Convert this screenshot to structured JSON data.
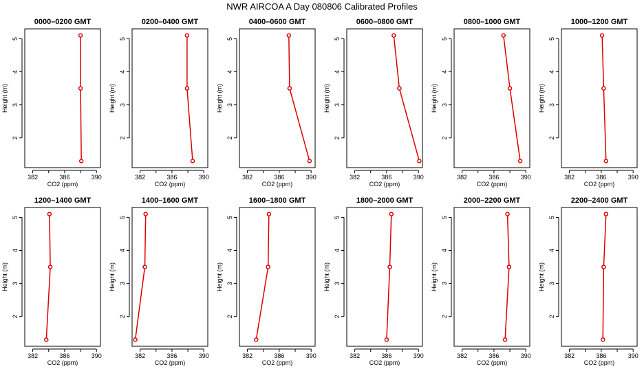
{
  "figure_title": "NWR AIRCOA A  Day 080806  Calibrated Profiles",
  "chart_data": [
    {
      "type": "line",
      "title": "0000–0200 GMT",
      "xlabel": "CO2 (ppm)",
      "ylabel": "Height (m)",
      "xlim": [
        381,
        390.5
      ],
      "ylim": [
        1.1,
        5.3
      ],
      "xticks": [
        382,
        386,
        390
      ],
      "yticks": [
        2,
        3,
        4,
        5
      ],
      "x": [
        388.1,
        388.0,
        388.0
      ],
      "y": [
        1.3,
        3.5,
        5.1
      ]
    },
    {
      "type": "line",
      "title": "0200–0400 GMT",
      "xlabel": "CO2 (ppm)",
      "ylabel": "Height (m)",
      "xlim": [
        381,
        390.5
      ],
      "ylim": [
        1.1,
        5.3
      ],
      "xticks": [
        382,
        386,
        390
      ],
      "yticks": [
        2,
        3,
        4,
        5
      ],
      "x": [
        388.6,
        387.9,
        387.9
      ],
      "y": [
        1.3,
        3.5,
        5.1
      ]
    },
    {
      "type": "line",
      "title": "0400–0600 GMT",
      "xlabel": "CO2 (ppm)",
      "ylabel": "Height (m)",
      "xlim": [
        381,
        390.5
      ],
      "ylim": [
        1.1,
        5.3
      ],
      "xticks": [
        382,
        386,
        390
      ],
      "yticks": [
        2,
        3,
        4,
        5
      ],
      "x": [
        389.8,
        387.3,
        387.2
      ],
      "y": [
        1.3,
        3.5,
        5.1
      ]
    },
    {
      "type": "line",
      "title": "0600–0800 GMT",
      "xlabel": "CO2 (ppm)",
      "ylabel": "Height (m)",
      "xlim": [
        381,
        390.5
      ],
      "ylim": [
        1.1,
        5.3
      ],
      "xticks": [
        382,
        386,
        390
      ],
      "yticks": [
        2,
        3,
        4,
        5
      ],
      "x": [
        390.1,
        387.6,
        386.9
      ],
      "y": [
        1.3,
        3.5,
        5.1
      ]
    },
    {
      "type": "line",
      "title": "0800–1000 GMT",
      "xlabel": "CO2 (ppm)",
      "ylabel": "Height (m)",
      "xlim": [
        381,
        390.5
      ],
      "ylim": [
        1.1,
        5.3
      ],
      "xticks": [
        382,
        386,
        390
      ],
      "yticks": [
        2,
        3,
        4,
        5
      ],
      "x": [
        389.3,
        388.0,
        387.2
      ],
      "y": [
        1.3,
        3.5,
        5.1
      ]
    },
    {
      "type": "line",
      "title": "1000–1200 GMT",
      "xlabel": "CO2 (ppm)",
      "ylabel": "Height (m)",
      "xlim": [
        381,
        390.5
      ],
      "ylim": [
        1.1,
        5.3
      ],
      "xticks": [
        382,
        386,
        390
      ],
      "yticks": [
        2,
        3,
        4,
        5
      ],
      "x": [
        386.6,
        386.3,
        386.1
      ],
      "y": [
        1.3,
        3.5,
        5.1
      ]
    },
    {
      "type": "line",
      "title": "1200–1400 GMT",
      "xlabel": "CO2 (ppm)",
      "ylabel": "Height (m)",
      "xlim": [
        381,
        390.5
      ],
      "ylim": [
        1.1,
        5.3
      ],
      "xticks": [
        382,
        386,
        390
      ],
      "yticks": [
        2,
        3,
        4,
        5
      ],
      "x": [
        383.7,
        384.2,
        384.1
      ],
      "y": [
        1.3,
        3.5,
        5.1
      ]
    },
    {
      "type": "line",
      "title": "1400–1600 GMT",
      "xlabel": "CO2 (ppm)",
      "ylabel": "Height (m)",
      "xlim": [
        381,
        390.5
      ],
      "ylim": [
        1.1,
        5.3
      ],
      "xticks": [
        382,
        386,
        390
      ],
      "yticks": [
        2,
        3,
        4,
        5
      ],
      "x": [
        381.4,
        382.6,
        382.7
      ],
      "y": [
        1.3,
        3.5,
        5.1
      ]
    },
    {
      "type": "line",
      "title": "1600–1800 GMT",
      "xlabel": "CO2 (ppm)",
      "ylabel": "Height (m)",
      "xlim": [
        381,
        390.5
      ],
      "ylim": [
        1.1,
        5.3
      ],
      "xticks": [
        382,
        386,
        390
      ],
      "yticks": [
        2,
        3,
        4,
        5
      ],
      "x": [
        383.1,
        384.6,
        384.7
      ],
      "y": [
        1.3,
        3.5,
        5.1
      ]
    },
    {
      "type": "line",
      "title": "1800–2000 GMT",
      "xlabel": "CO2 (ppm)",
      "ylabel": "Height (m)",
      "xlim": [
        381,
        390.5
      ],
      "ylim": [
        1.1,
        5.3
      ],
      "xticks": [
        382,
        386,
        390
      ],
      "yticks": [
        2,
        3,
        4,
        5
      ],
      "x": [
        386.0,
        386.4,
        386.6
      ],
      "y": [
        1.3,
        3.5,
        5.1
      ]
    },
    {
      "type": "line",
      "title": "2000–2200 GMT",
      "xlabel": "CO2 (ppm)",
      "ylabel": "Height (m)",
      "xlim": [
        381,
        390.5
      ],
      "ylim": [
        1.1,
        5.3
      ],
      "xticks": [
        382,
        386,
        390
      ],
      "yticks": [
        2,
        3,
        4,
        5
      ],
      "x": [
        387.4,
        387.9,
        387.7
      ],
      "y": [
        1.3,
        3.5,
        5.1
      ]
    },
    {
      "type": "line",
      "title": "2200–2400 GMT",
      "xlabel": "CO2 (ppm)",
      "ylabel": "Height (m)",
      "xlim": [
        381,
        390.5
      ],
      "ylim": [
        1.1,
        5.3
      ],
      "xticks": [
        382,
        386,
        390
      ],
      "yticks": [
        2,
        3,
        4,
        5
      ],
      "x": [
        386.2,
        386.3,
        386.6
      ],
      "y": [
        1.3,
        3.5,
        5.1
      ]
    }
  ]
}
